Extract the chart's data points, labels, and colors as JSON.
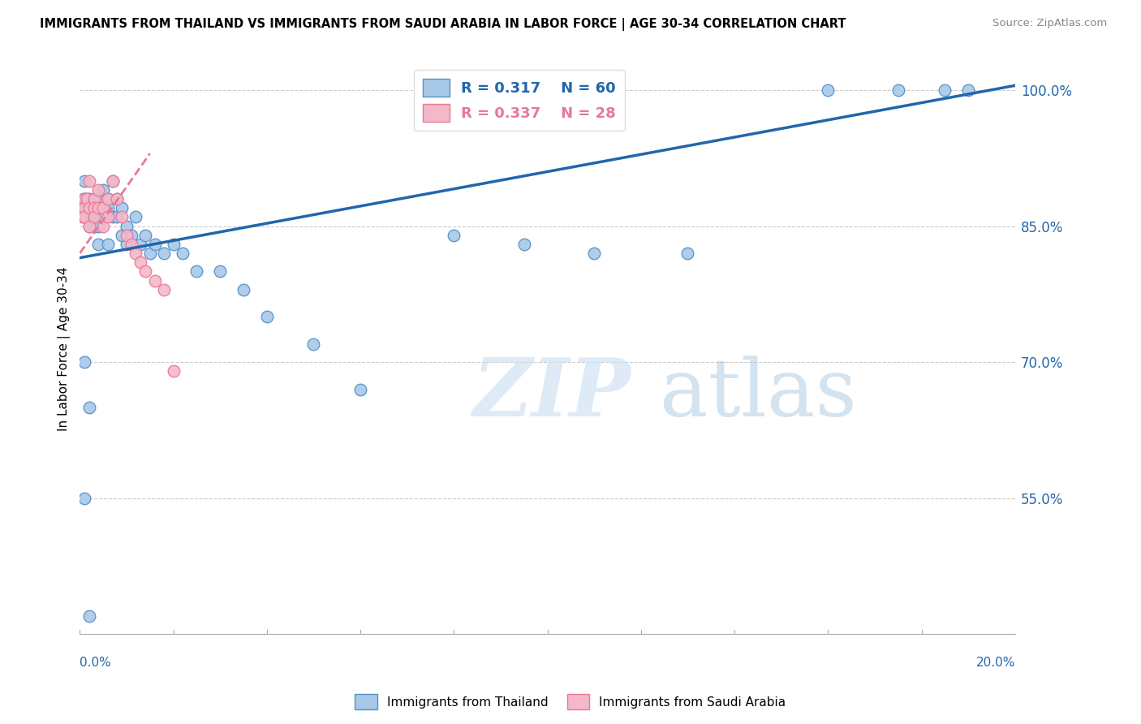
{
  "title": "IMMIGRANTS FROM THAILAND VS IMMIGRANTS FROM SAUDI ARABIA IN LABOR FORCE | AGE 30-34 CORRELATION CHART",
  "source": "Source: ZipAtlas.com",
  "ylabel": "In Labor Force | Age 30-34",
  "y_ticks": [
    0.55,
    0.7,
    0.85,
    1.0
  ],
  "y_tick_labels": [
    "55.0%",
    "70.0%",
    "85.0%",
    "100.0%"
  ],
  "xmin": 0.0,
  "xmax": 0.2,
  "ymin": 0.4,
  "ymax": 1.03,
  "blue_R": 0.317,
  "blue_N": 60,
  "pink_R": 0.337,
  "pink_N": 28,
  "blue_color": "#a8c8e8",
  "pink_color": "#f4b8c8",
  "blue_edge_color": "#5590c8",
  "pink_edge_color": "#e87898",
  "blue_line_color": "#2166ac",
  "pink_line_color": "#e87898",
  "legend_label_blue": "Immigrants from Thailand",
  "legend_label_pink": "Immigrants from Saudi Arabia",
  "watermark": "ZIPatlas",
  "blue_scatter_x": [
    0.0005,
    0.0008,
    0.001,
    0.001,
    0.001,
    0.0015,
    0.002,
    0.002,
    0.002,
    0.002,
    0.002,
    0.003,
    0.003,
    0.003,
    0.003,
    0.004,
    0.004,
    0.004,
    0.004,
    0.005,
    0.005,
    0.005,
    0.006,
    0.006,
    0.006,
    0.007,
    0.007,
    0.008,
    0.008,
    0.009,
    0.009,
    0.01,
    0.01,
    0.011,
    0.012,
    0.013,
    0.014,
    0.015,
    0.016,
    0.018,
    0.02,
    0.022,
    0.025,
    0.03,
    0.035,
    0.04,
    0.05,
    0.06,
    0.08,
    0.095,
    0.11,
    0.13,
    0.16,
    0.175,
    0.185,
    0.19,
    0.001,
    0.002,
    0.001,
    0.002
  ],
  "blue_scatter_y": [
    0.87,
    0.88,
    0.86,
    0.88,
    0.9,
    0.88,
    0.87,
    0.86,
    0.85,
    0.88,
    0.87,
    0.88,
    0.87,
    0.86,
    0.85,
    0.88,
    0.87,
    0.85,
    0.83,
    0.89,
    0.87,
    0.86,
    0.88,
    0.87,
    0.83,
    0.9,
    0.86,
    0.88,
    0.86,
    0.87,
    0.84,
    0.85,
    0.83,
    0.84,
    0.86,
    0.83,
    0.84,
    0.82,
    0.83,
    0.82,
    0.83,
    0.82,
    0.8,
    0.8,
    0.78,
    0.75,
    0.72,
    0.67,
    0.84,
    0.83,
    0.82,
    0.82,
    1.0,
    1.0,
    1.0,
    1.0,
    0.55,
    0.42,
    0.7,
    0.65
  ],
  "pink_scatter_x": [
    0.0005,
    0.001,
    0.001,
    0.001,
    0.0015,
    0.002,
    0.002,
    0.002,
    0.003,
    0.003,
    0.003,
    0.004,
    0.004,
    0.005,
    0.005,
    0.006,
    0.006,
    0.007,
    0.008,
    0.009,
    0.01,
    0.011,
    0.012,
    0.013,
    0.014,
    0.016,
    0.018,
    0.02
  ],
  "pink_scatter_y": [
    0.86,
    0.88,
    0.87,
    0.86,
    0.88,
    0.9,
    0.87,
    0.85,
    0.88,
    0.87,
    0.86,
    0.89,
    0.87,
    0.87,
    0.85,
    0.88,
    0.86,
    0.9,
    0.88,
    0.86,
    0.84,
    0.83,
    0.82,
    0.81,
    0.8,
    0.79,
    0.78,
    0.69
  ],
  "blue_trend_x0": 0.0,
  "blue_trend_y0": 0.815,
  "blue_trend_x1": 0.2,
  "blue_trend_y1": 1.005,
  "pink_trend_x0": 0.0,
  "pink_trend_y0": 0.82,
  "pink_trend_x1": 0.015,
  "pink_trend_y1": 0.93
}
